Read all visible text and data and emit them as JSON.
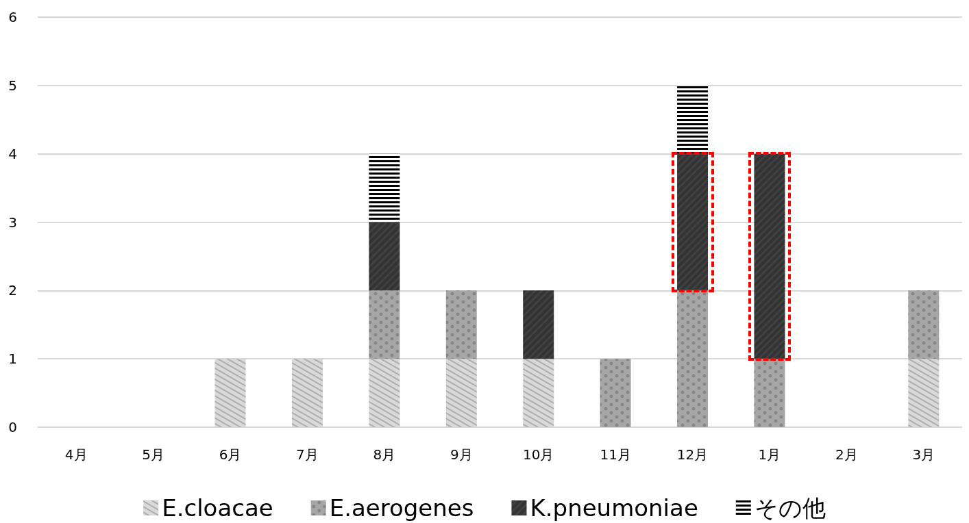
{
  "chart_data": {
    "type": "bar",
    "stacked": true,
    "categories": [
      "4月",
      "5月",
      "6月",
      "7月",
      "8月",
      "9月",
      "10月",
      "11月",
      "12月",
      "1月",
      "2月",
      "3月"
    ],
    "series": [
      {
        "name": "E.cloacae",
        "color": "#d9d9d9",
        "values": [
          0,
          0,
          1,
          1,
          1,
          1,
          1,
          0,
          0,
          0,
          0,
          1
        ]
      },
      {
        "name": "E.aerogenes",
        "color": "#a6a6a6",
        "values": [
          0,
          0,
          0,
          0,
          1,
          1,
          0,
          1,
          2,
          1,
          0,
          1
        ]
      },
      {
        "name": "K.pneumoniae",
        "color": "#404040",
        "values": [
          0,
          0,
          0,
          0,
          1,
          0,
          1,
          0,
          2,
          3,
          0,
          0
        ]
      },
      {
        "name": "その他",
        "color": "#000000",
        "values": [
          0,
          0,
          0,
          0,
          1,
          0,
          0,
          0,
          1,
          0,
          0,
          0
        ]
      }
    ],
    "ylim": [
      0,
      6
    ],
    "yticks": [
      0,
      1,
      2,
      3,
      4,
      5,
      6
    ],
    "grid": "y",
    "legend": "bottom"
  }
}
